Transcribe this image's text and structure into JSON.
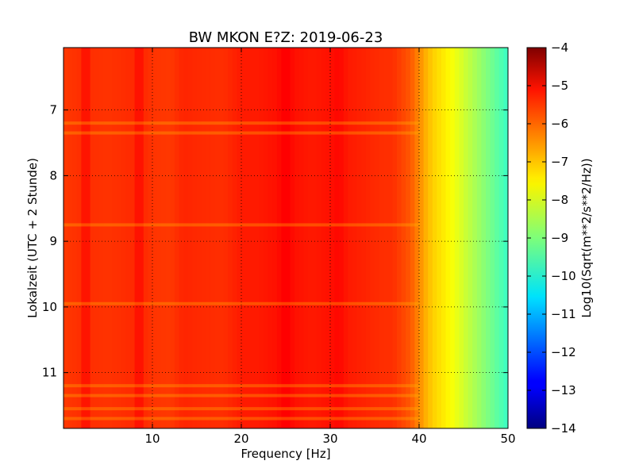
{
  "chart_data": {
    "type": "heatmap",
    "title": "BW MKON E?Z: 2019-06-23",
    "xlabel": "Frequency [Hz]",
    "ylabel": "Lokalzeit (UTC + 2 Stunde)",
    "xlim": [
      0,
      50
    ],
    "ylim": [
      11.85,
      6.05
    ],
    "y_inverted": true,
    "xticks": [
      10,
      20,
      30,
      40,
      50
    ],
    "yticks": [
      7,
      8,
      9,
      10,
      11
    ],
    "grid": true,
    "colorbar": {
      "label": "Log10(Sqrt(m**2/s**2/Hz))",
      "range": [
        -14,
        -4
      ],
      "ticks": [
        -4,
        -5,
        -6,
        -7,
        -8,
        -9,
        -10,
        -11,
        -12,
        -13,
        -14
      ],
      "colormap": "jet"
    },
    "frequency_profile": {
      "frequency_hz": [
        0,
        2,
        2.5,
        3,
        5,
        8,
        8.5,
        9,
        10,
        12,
        13.5,
        15,
        18,
        20,
        22,
        24,
        25,
        26,
        28,
        30,
        31,
        32,
        34,
        36,
        37,
        38,
        39,
        40,
        41,
        42,
        43,
        44,
        45,
        46,
        47,
        48,
        49,
        50
      ],
      "log10_amplitude": [
        -5.8,
        -5.7,
        -5.2,
        -5.7,
        -5.75,
        -5.65,
        -5.2,
        -5.65,
        -5.75,
        -5.8,
        -5.6,
        -5.65,
        -5.7,
        -5.5,
        -5.5,
        -5.4,
        -5.2,
        -5.4,
        -5.5,
        -5.4,
        -5.3,
        -5.5,
        -5.6,
        -5.7,
        -5.7,
        -5.9,
        -6.1,
        -6.6,
        -7.1,
        -7.4,
        -7.6,
        -7.9,
        -8.2,
        -8.5,
        -8.8,
        -9.1,
        -9.4,
        -9.7
      ]
    },
    "bright_time_bands_hour": [
      7.2,
      7.35,
      8.75,
      9.95,
      11.2,
      11.35,
      11.55,
      11.7
    ]
  }
}
